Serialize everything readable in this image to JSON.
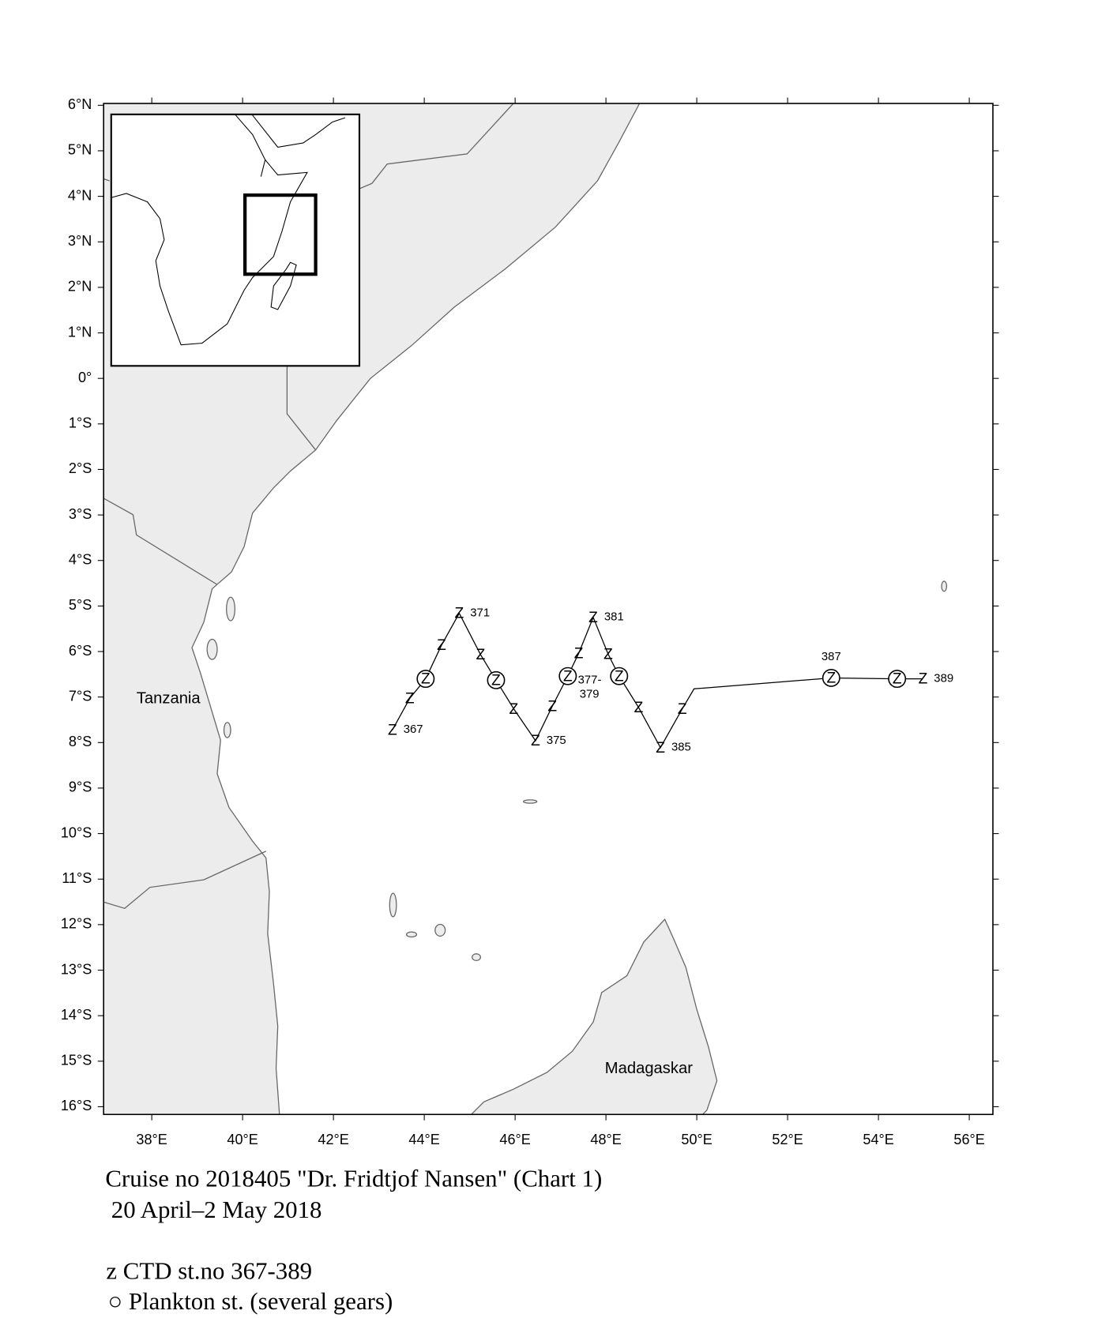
{
  "chart_data": {
    "type": "map",
    "xlim": [
      36.94,
      56.52
    ],
    "ylim": [
      -16.17,
      6.04
    ],
    "xticks": [
      {
        "value": 38,
        "label": "38°E"
      },
      {
        "value": 40,
        "label": "40°E"
      },
      {
        "value": 42,
        "label": "42°E"
      },
      {
        "value": 44,
        "label": "44°E"
      },
      {
        "value": 46,
        "label": "46°E"
      },
      {
        "value": 48,
        "label": "48°E"
      },
      {
        "value": 50,
        "label": "50°E"
      },
      {
        "value": 52,
        "label": "52°E"
      },
      {
        "value": 54,
        "label": "54°E"
      },
      {
        "value": 56,
        "label": "56°E"
      }
    ],
    "yticks": [
      {
        "value": 6,
        "label": "6°N"
      },
      {
        "value": 5,
        "label": "5°N"
      },
      {
        "value": 4,
        "label": "4°N"
      },
      {
        "value": 3,
        "label": "3°N"
      },
      {
        "value": 2,
        "label": "2°N"
      },
      {
        "value": 1,
        "label": "1°N"
      },
      {
        "value": 0,
        "label": "0°"
      },
      {
        "value": -1,
        "label": "1°S"
      },
      {
        "value": -2,
        "label": "2°S"
      },
      {
        "value": -3,
        "label": "3°S"
      },
      {
        "value": -4,
        "label": "4°S"
      },
      {
        "value": -5,
        "label": "5°S"
      },
      {
        "value": -6,
        "label": "6°S"
      },
      {
        "value": -7,
        "label": "7°S"
      },
      {
        "value": -8,
        "label": "8°S"
      },
      {
        "value": -9,
        "label": "9°S"
      },
      {
        "value": -10,
        "label": "10°S"
      },
      {
        "value": -11,
        "label": "11°S"
      },
      {
        "value": -12,
        "label": "12°S"
      },
      {
        "value": -13,
        "label": "13°S"
      },
      {
        "value": -14,
        "label": "14°S"
      },
      {
        "value": -15,
        "label": "15°S"
      },
      {
        "value": -16,
        "label": "16°S"
      }
    ],
    "track": {
      "lon": [
        43.3,
        43.68,
        44.03,
        44.38,
        44.77,
        45.24,
        45.58,
        45.97,
        46.45,
        46.82,
        47.16,
        47.4,
        47.72,
        48.05,
        48.29,
        48.72,
        49.2,
        49.68,
        49.94,
        52.96,
        54.41,
        54.98
      ],
      "lat": [
        -7.72,
        -7.03,
        -6.6,
        -5.86,
        -5.16,
        -6.07,
        -6.63,
        -7.26,
        -7.96,
        -7.2,
        -6.54,
        -6.04,
        -5.25,
        -6.06,
        -6.54,
        -7.23,
        -8.11,
        -7.26,
        -6.82,
        -6.58,
        -6.6,
        -6.6
      ]
    },
    "ctd": {
      "marker": "Z",
      "lon": [
        43.3,
        43.68,
        44.03,
        44.38,
        44.77,
        45.24,
        45.58,
        45.97,
        46.45,
        46.82,
        47.16,
        47.4,
        47.72,
        48.05,
        48.29,
        48.72,
        49.2,
        49.68,
        52.96,
        54.41,
        54.98
      ],
      "lat": [
        -7.72,
        -7.03,
        -6.6,
        -5.86,
        -5.16,
        -6.07,
        -6.63,
        -7.26,
        -7.96,
        -7.2,
        -6.54,
        -6.04,
        -5.25,
        -6.06,
        -6.54,
        -7.23,
        -8.11,
        -7.26,
        -6.58,
        -6.6,
        -6.6
      ],
      "labels": [
        "367",
        null,
        null,
        null,
        "371",
        null,
        null,
        null,
        "375",
        null,
        [
          "377-",
          "379"
        ],
        null,
        "381",
        null,
        null,
        null,
        "385",
        null,
        "387",
        null,
        "389"
      ]
    },
    "plankton": {
      "lon": [
        44.03,
        45.58,
        47.16,
        48.29,
        52.96,
        54.41
      ],
      "lat": [
        -6.6,
        -6.63,
        -6.54,
        -6.54,
        -6.58,
        -6.6
      ]
    },
    "places": [
      "Tanzania",
      "Madagaskar"
    ],
    "caption": [
      "Cruise no 2018405  \"Dr. Fridtjof Nansen\" (Chart 1)",
      "20 April–2 May 2018"
    ],
    "legend": [
      "z  CTD st.no 367-389",
      "○ Plankton st. (several gears)"
    ]
  }
}
